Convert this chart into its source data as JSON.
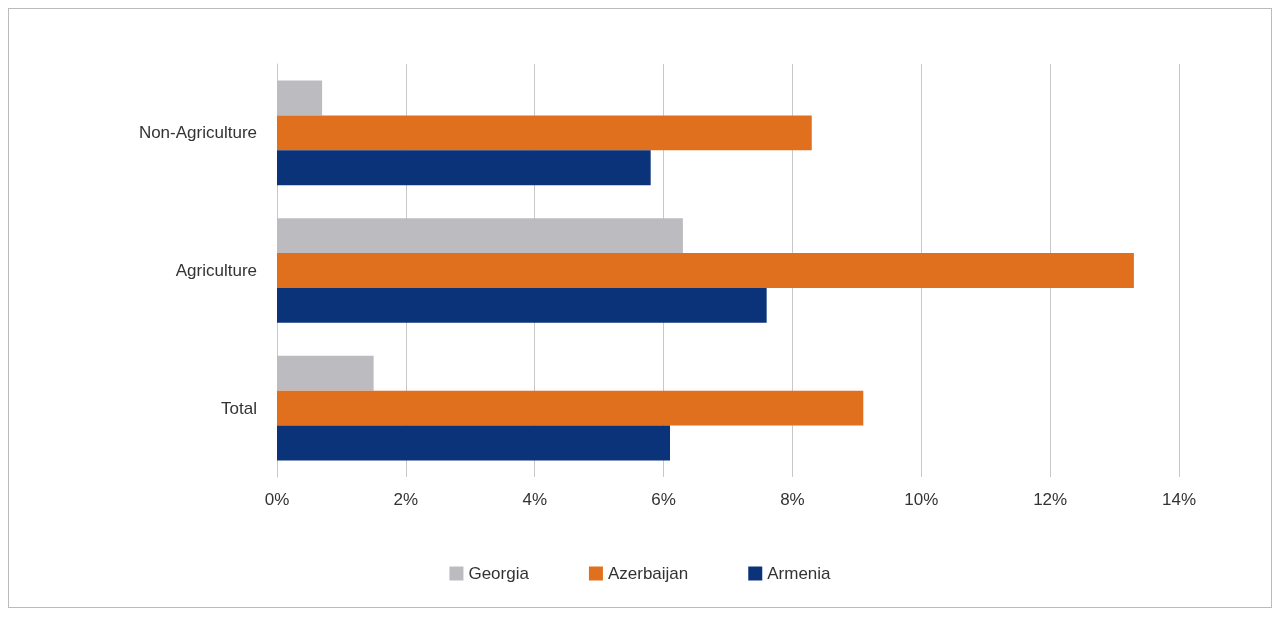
{
  "chart_data": {
    "type": "bar",
    "orientation": "horizontal",
    "categories": [
      "Non-Agriculture",
      "Agriculture",
      "Total"
    ],
    "series": [
      {
        "name": "Georgia",
        "color": "#bcbcc0",
        "values": [
          0.7,
          6.3,
          1.5
        ]
      },
      {
        "name": "Azerbaijan",
        "color": "#e0701e",
        "values": [
          8.3,
          13.3,
          9.1
        ]
      },
      {
        "name": "Armenia",
        "color": "#0b337a",
        "values": [
          5.8,
          7.6,
          6.1
        ]
      }
    ],
    "xlim": [
      0,
      14
    ],
    "xticks": [
      {
        "value": 0,
        "label": "0%"
      },
      {
        "value": 2,
        "label": "2%"
      },
      {
        "value": 4,
        "label": "4%"
      },
      {
        "value": 6,
        "label": "6%"
      },
      {
        "value": 8,
        "label": "8%"
      },
      {
        "value": 10,
        "label": "10%"
      },
      {
        "value": 12,
        "label": "12%"
      },
      {
        "value": 14,
        "label": "14%"
      }
    ],
    "grid": "x",
    "legend": "bottom"
  }
}
